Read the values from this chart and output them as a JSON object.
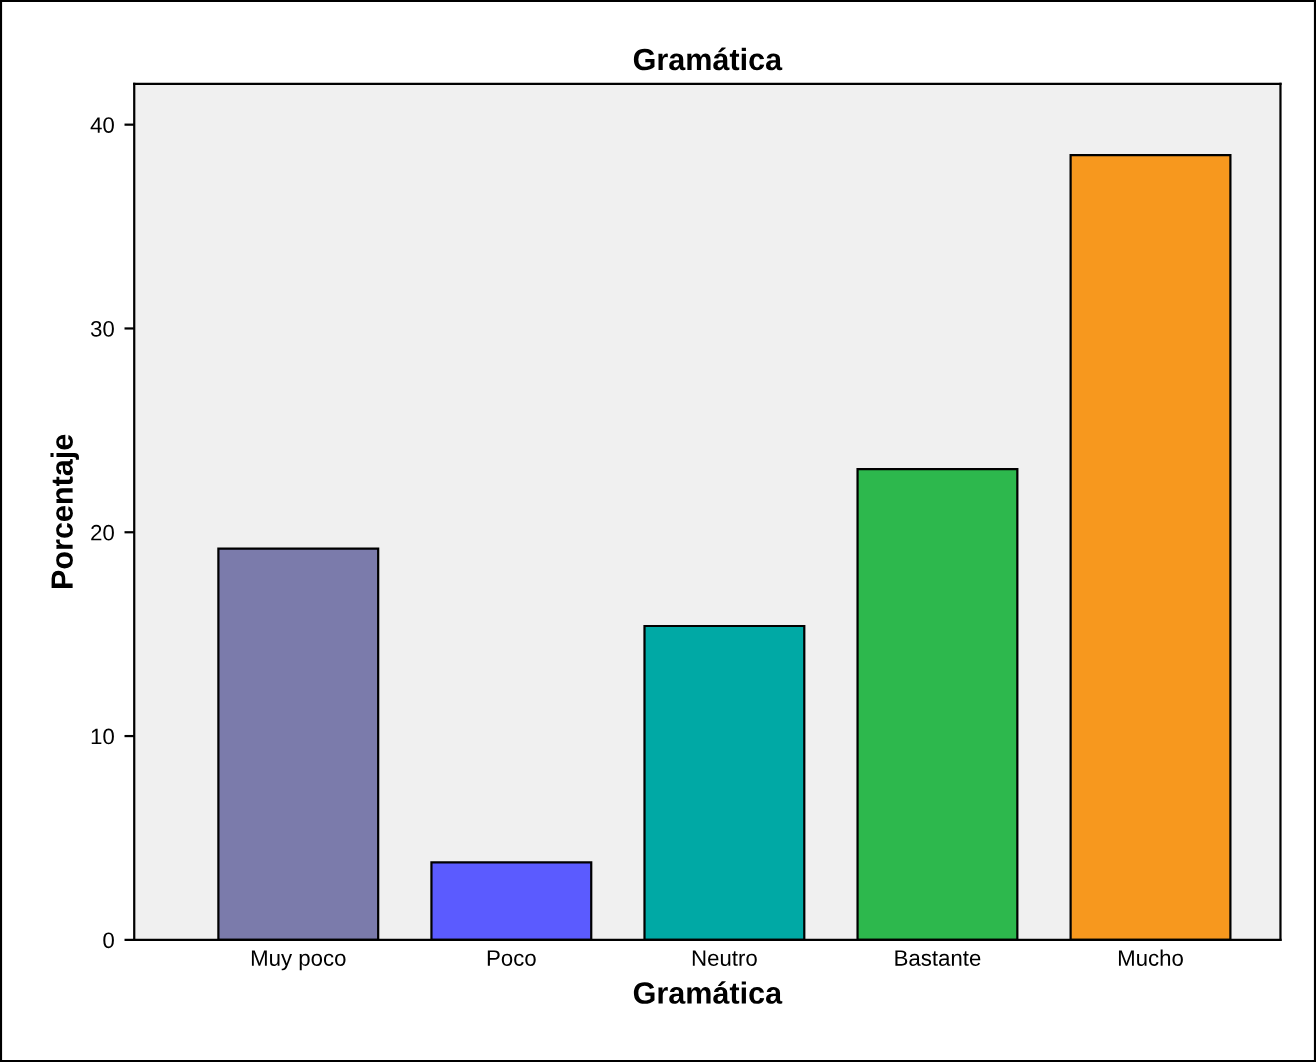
{
  "chart_data": {
    "type": "bar",
    "title": "Gramática",
    "xlabel": "Gramática",
    "ylabel": "Porcentaje",
    "categories": [
      "Muy poco",
      "Poco",
      "Neutro",
      "Bastante",
      "Mucho"
    ],
    "values": [
      19.2,
      3.8,
      15.4,
      23.1,
      38.5
    ],
    "colors": [
      "#7b7bab",
      "#5b5bff",
      "#00a9a5",
      "#2db84d",
      "#f7981e"
    ],
    "ylim": [
      0,
      42
    ],
    "yticks": [
      0,
      10,
      20,
      30,
      40
    ],
    "grid": false
  }
}
